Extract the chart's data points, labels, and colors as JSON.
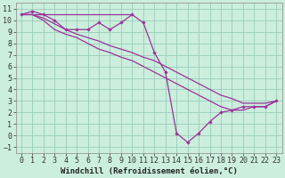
{
  "line_color": "#993399",
  "bg_color": "#cceedd",
  "grid_color": "#99ccbb",
  "xlabel": "Windchill (Refroidissement éolien,°C)",
  "xlabel_fontsize": 6.5,
  "tick_fontsize": 6.0,
  "xlim": [
    -0.5,
    23.5
  ],
  "ylim": [
    -1.5,
    11.5
  ],
  "xticks": [
    0,
    1,
    2,
    3,
    4,
    5,
    6,
    7,
    8,
    9,
    10,
    11,
    12,
    13,
    14,
    15,
    16,
    17,
    18,
    19,
    20,
    21,
    22,
    23
  ],
  "yticks": [
    -1,
    0,
    1,
    2,
    3,
    4,
    5,
    6,
    7,
    8,
    9,
    10,
    11
  ],
  "series": [
    {
      "x": [
        0,
        1,
        2,
        3,
        4,
        5,
        6,
        7,
        8,
        9,
        10
      ],
      "y": [
        10.5,
        10.5,
        10.5,
        10.5,
        10.5,
        10.5,
        10.5,
        10.5,
        10.5,
        10.5,
        10.5
      ],
      "marker": false,
      "lw": 0.9
    },
    {
      "x": [
        0,
        1,
        2,
        3,
        4,
        5,
        6,
        7,
        8,
        9,
        10,
        11,
        12,
        13,
        14,
        15,
        16,
        17,
        18,
        19,
        20,
        21,
        22,
        23
      ],
      "y": [
        10.5,
        10.8,
        10.5,
        10.0,
        9.2,
        9.2,
        9.2,
        9.8,
        9.2,
        9.8,
        10.5,
        9.8,
        7.2,
        5.5,
        0.2,
        -0.6,
        0.2,
        1.2,
        2.0,
        2.2,
        2.5,
        2.5,
        2.5,
        3.0
      ],
      "marker": true,
      "lw": 0.9
    },
    {
      "x": [
        0,
        1,
        2,
        3,
        4,
        5,
        6,
        7,
        8,
        9,
        10,
        11,
        12,
        13,
        14,
        15,
        16,
        17,
        18,
        19,
        20,
        21,
        22,
        23
      ],
      "y": [
        10.5,
        10.5,
        10.2,
        9.7,
        9.2,
        8.8,
        8.5,
        8.2,
        7.8,
        7.5,
        7.2,
        6.8,
        6.5,
        6.0,
        5.5,
        5.0,
        4.5,
        4.0,
        3.5,
        3.2,
        2.8,
        2.8,
        2.8,
        3.0
      ],
      "marker": false,
      "lw": 0.9
    },
    {
      "x": [
        0,
        1,
        2,
        3,
        4,
        5,
        6,
        7,
        8,
        9,
        10,
        11,
        12,
        13,
        14,
        15,
        16,
        17,
        18,
        19,
        20,
        21,
        22,
        23
      ],
      "y": [
        10.5,
        10.5,
        10.0,
        9.2,
        8.8,
        8.5,
        8.0,
        7.5,
        7.2,
        6.8,
        6.5,
        6.0,
        5.5,
        5.0,
        4.5,
        4.0,
        3.5,
        3.0,
        2.5,
        2.2,
        2.2,
        2.5,
        2.5,
        3.0
      ],
      "marker": false,
      "lw": 0.9
    }
  ]
}
